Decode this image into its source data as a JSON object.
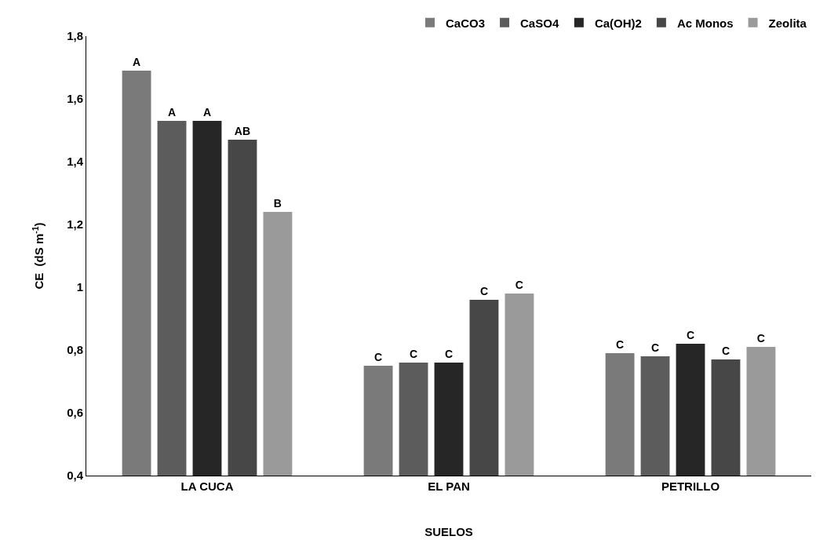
{
  "chart_data": {
    "type": "bar",
    "xlabel": "SUELOS",
    "ylabel": "CE  (dS m$^{-1}$)",
    "categories": [
      "LA CUCA",
      "EL PAN",
      "PETRILLO"
    ],
    "series": [
      {
        "name": "CaCO3",
        "color": "#7a7a7a",
        "values": [
          1.69,
          0.75,
          0.79
        ],
        "value_labels": [
          "A",
          "C",
          "C"
        ]
      },
      {
        "name": "CaSO4",
        "color": "#5c5c5c",
        "values": [
          1.53,
          0.76,
          0.78
        ],
        "value_labels": [
          "A",
          "C",
          "C"
        ]
      },
      {
        "name": "Ca(OH)2",
        "color": "#262626",
        "values": [
          1.53,
          0.76,
          0.82
        ],
        "value_labels": [
          "A",
          "C",
          "C"
        ]
      },
      {
        "name": "Ac Monos",
        "color": "#474747",
        "values": [
          1.47,
          0.96,
          0.77
        ],
        "value_labels": [
          "AB",
          "C",
          "C"
        ]
      },
      {
        "name": "Zeolita",
        "color": "#9a9a9a",
        "values": [
          1.24,
          0.98,
          0.81
        ],
        "value_labels": [
          "B",
          "C",
          "C"
        ]
      }
    ],
    "ylim": [
      0.4,
      1.8
    ],
    "yticks": [
      {
        "value": 0.4,
        "label": "0,4"
      },
      {
        "value": 0.6,
        "label": "0,6"
      },
      {
        "value": 0.8,
        "label": "0,8"
      },
      1,
      {
        "value": 1.2,
        "label": "1,2"
      },
      {
        "value": 1.4,
        "label": "1,4"
      },
      {
        "value": 1.6,
        "label": "1,6"
      },
      {
        "value": 1.8,
        "label": "1,8"
      }
    ],
    "grid": false,
    "legend": "top right"
  }
}
